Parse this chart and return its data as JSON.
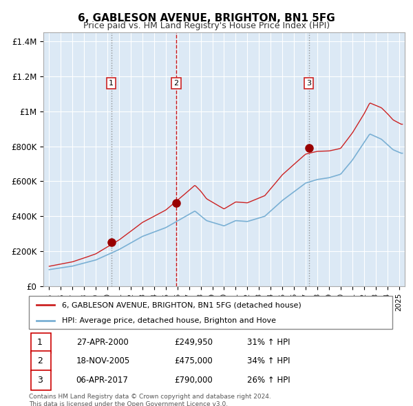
{
  "title": "6, GABLESON AVENUE, BRIGHTON, BN1 5FG",
  "subtitle": "Price paid vs. HM Land Registry's House Price Index (HPI)",
  "bg_color": "#dce9f5",
  "grid_color": "#ffffff",
  "red_line_color": "#cc2222",
  "blue_line_color": "#7ab0d4",
  "marker_color": "#990000",
  "sale_dates": [
    2000.32,
    2005.88,
    2017.27
  ],
  "sale_prices": [
    249950,
    475000,
    790000
  ],
  "sale_labels": [
    "1",
    "2",
    "3"
  ],
  "sale_info": [
    {
      "num": "1",
      "date": "27-APR-2000",
      "price": "£249,950",
      "hpi": "31% ↑ HPI"
    },
    {
      "num": "2",
      "date": "18-NOV-2005",
      "price": "£475,000",
      "hpi": "34% ↑ HPI"
    },
    {
      "num": "3",
      "date": "06-APR-2017",
      "price": "£790,000",
      "hpi": "26% ↑ HPI"
    }
  ],
  "legend1": "6, GABLESON AVENUE, BRIGHTON, BN1 5FG (detached house)",
  "legend2": "HPI: Average price, detached house, Brighton and Hove",
  "footer": "Contains HM Land Registry data © Crown copyright and database right 2024.\nThis data is licensed under the Open Government Licence v3.0.",
  "xmin": 1994.5,
  "xmax": 2025.5,
  "ymin": 0,
  "ymax": 1450000,
  "yticks": [
    0,
    200000,
    400000,
    600000,
    800000,
    1000000,
    1200000,
    1400000
  ],
  "hpi_waypoints_dates": [
    1995.0,
    1997.0,
    1999.0,
    2001.0,
    2003.0,
    2005.0,
    2007.5,
    2008.5,
    2009.5,
    2010.0,
    2011.0,
    2012.0,
    2013.5,
    2015.0,
    2016.0,
    2017.0,
    2018.0,
    2019.0,
    2020.0,
    2021.0,
    2022.5,
    2023.5,
    2024.5,
    2025.2
  ],
  "hpi_waypoints_vals": [
    95000,
    115000,
    150000,
    210000,
    285000,
    335000,
    430000,
    375000,
    355000,
    345000,
    375000,
    370000,
    400000,
    490000,
    540000,
    590000,
    610000,
    620000,
    640000,
    720000,
    870000,
    840000,
    780000,
    760000
  ],
  "red_premium_dates": [
    1995.0,
    1998.0,
    2000.0,
    2005.0,
    2008.0,
    2010.0,
    2015.0,
    2017.0,
    2022.0,
    2024.0,
    2025.2
  ],
  "red_premium_vals": [
    1.2,
    1.22,
    1.25,
    1.3,
    1.35,
    1.28,
    1.3,
    1.28,
    1.2,
    1.22,
    1.22
  ]
}
